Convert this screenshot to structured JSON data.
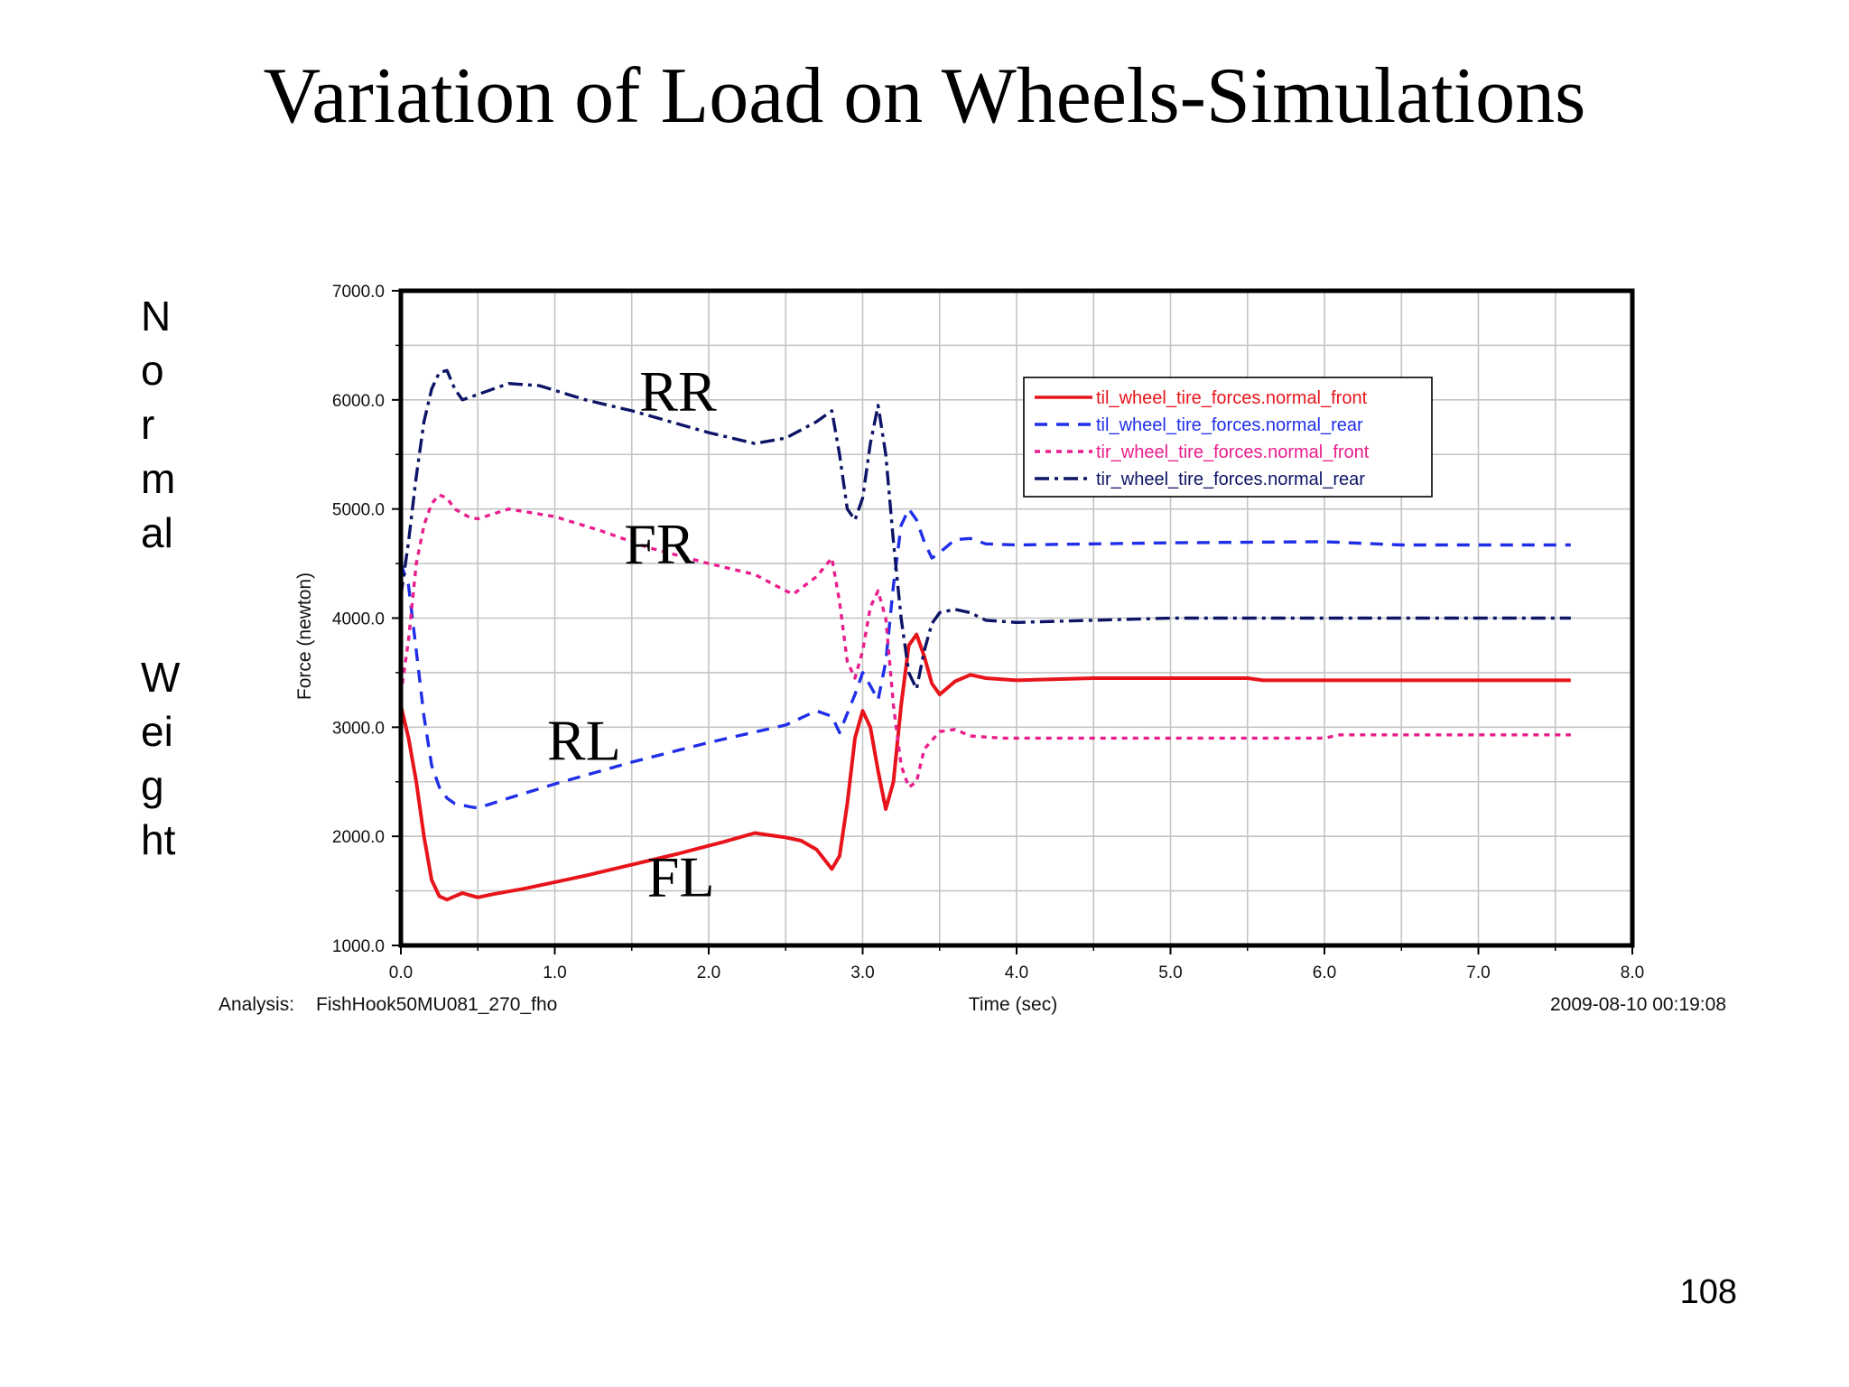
{
  "slide": {
    "title": "Variation of Load on Wheels-Simulations",
    "side_label_top": "N\no\nr\nm\nal",
    "side_label_bottom": "W\nei\ng\nht",
    "page_number": "108"
  },
  "chart_data": {
    "type": "line",
    "ylabel": "Force (newton)",
    "xlabel": "Time (sec)",
    "xlim": [
      0,
      8
    ],
    "ylim": [
      1000,
      7000
    ],
    "x_ticks": [
      "0.0",
      "1.0",
      "2.0",
      "3.0",
      "4.0",
      "5.0",
      "6.0",
      "7.0",
      "8.0"
    ],
    "y_ticks": [
      "1000.0",
      "2000.0",
      "3000.0",
      "4000.0",
      "5000.0",
      "6000.0",
      "7000.0"
    ],
    "grid": true,
    "legend_position": "top-right",
    "analysis_label": "Analysis:",
    "analysis_name": "FishHook50MU081_270_fho",
    "timestamp": "2009-08-10 00:19:08",
    "annotations": [
      {
        "text": "RR",
        "x": 1.55,
        "y": 5900
      },
      {
        "text": "FR",
        "x": 1.45,
        "y": 4500
      },
      {
        "text": "RL",
        "x": 0.95,
        "y": 2700
      },
      {
        "text": "FL",
        "x": 1.6,
        "y": 1450
      }
    ],
    "series": [
      {
        "name": "til_wheel_tire_forces.normal_front",
        "color": "#e8141b",
        "dash": "solid",
        "points": [
          [
            0,
            3200
          ],
          [
            0.05,
            2900
          ],
          [
            0.1,
            2500
          ],
          [
            0.15,
            2000
          ],
          [
            0.2,
            1600
          ],
          [
            0.25,
            1450
          ],
          [
            0.3,
            1420
          ],
          [
            0.35,
            1450
          ],
          [
            0.4,
            1480
          ],
          [
            0.45,
            1460
          ],
          [
            0.5,
            1440
          ],
          [
            0.6,
            1470
          ],
          [
            0.8,
            1520
          ],
          [
            1.0,
            1580
          ],
          [
            1.2,
            1640
          ],
          [
            1.5,
            1740
          ],
          [
            1.8,
            1840
          ],
          [
            2.1,
            1950
          ],
          [
            2.3,
            2030
          ],
          [
            2.4,
            2010
          ],
          [
            2.5,
            1990
          ],
          [
            2.6,
            1960
          ],
          [
            2.7,
            1880
          ],
          [
            2.8,
            1700
          ],
          [
            2.85,
            1820
          ],
          [
            2.9,
            2300
          ],
          [
            2.95,
            2900
          ],
          [
            3.0,
            3150
          ],
          [
            3.05,
            3000
          ],
          [
            3.1,
            2600
          ],
          [
            3.15,
            2250
          ],
          [
            3.2,
            2500
          ],
          [
            3.25,
            3200
          ],
          [
            3.3,
            3750
          ],
          [
            3.35,
            3850
          ],
          [
            3.4,
            3650
          ],
          [
            3.45,
            3400
          ],
          [
            3.5,
            3300
          ],
          [
            3.6,
            3420
          ],
          [
            3.7,
            3480
          ],
          [
            3.8,
            3450
          ],
          [
            4.0,
            3430
          ],
          [
            4.5,
            3450
          ],
          [
            5.5,
            3450
          ],
          [
            5.6,
            3430
          ],
          [
            6.5,
            3430
          ],
          [
            7.6,
            3430
          ]
        ]
      },
      {
        "name": "til_wheel_tire_forces.normal_rear",
        "color": "#1f2ee8",
        "dash": "14,10",
        "points": [
          [
            0,
            4500
          ],
          [
            0.05,
            4300
          ],
          [
            0.1,
            3700
          ],
          [
            0.15,
            3100
          ],
          [
            0.2,
            2650
          ],
          [
            0.25,
            2450
          ],
          [
            0.3,
            2350
          ],
          [
            0.35,
            2300
          ],
          [
            0.45,
            2270
          ],
          [
            0.5,
            2260
          ],
          [
            0.7,
            2350
          ],
          [
            1.0,
            2480
          ],
          [
            1.5,
            2680
          ],
          [
            2.0,
            2860
          ],
          [
            2.5,
            3020
          ],
          [
            2.7,
            3150
          ],
          [
            2.8,
            3100
          ],
          [
            2.85,
            2950
          ],
          [
            2.95,
            3300
          ],
          [
            3.0,
            3500
          ],
          [
            3.05,
            3380
          ],
          [
            3.1,
            3250
          ],
          [
            3.15,
            3600
          ],
          [
            3.2,
            4300
          ],
          [
            3.25,
            4850
          ],
          [
            3.3,
            5000
          ],
          [
            3.35,
            4900
          ],
          [
            3.4,
            4700
          ],
          [
            3.45,
            4550
          ],
          [
            3.5,
            4600
          ],
          [
            3.6,
            4720
          ],
          [
            3.7,
            4730
          ],
          [
            3.8,
            4680
          ],
          [
            4.0,
            4670
          ],
          [
            5.0,
            4690
          ],
          [
            6.0,
            4700
          ],
          [
            6.5,
            4670
          ],
          [
            7.6,
            4670
          ]
        ]
      },
      {
        "name": "tir_wheel_tire_forces.normal_front",
        "color": "#e91e8c",
        "dash": "6,6",
        "points": [
          [
            0,
            3300
          ],
          [
            0.05,
            3800
          ],
          [
            0.1,
            4500
          ],
          [
            0.15,
            4850
          ],
          [
            0.2,
            5050
          ],
          [
            0.25,
            5130
          ],
          [
            0.3,
            5100
          ],
          [
            0.35,
            5000
          ],
          [
            0.45,
            4920
          ],
          [
            0.5,
            4910
          ],
          [
            0.7,
            5000
          ],
          [
            1.0,
            4930
          ],
          [
            1.3,
            4800
          ],
          [
            1.6,
            4650
          ],
          [
            2.0,
            4500
          ],
          [
            2.3,
            4400
          ],
          [
            2.5,
            4250
          ],
          [
            2.55,
            4220
          ],
          [
            2.7,
            4380
          ],
          [
            2.8,
            4550
          ],
          [
            2.85,
            4150
          ],
          [
            2.9,
            3600
          ],
          [
            2.95,
            3450
          ],
          [
            3.0,
            3700
          ],
          [
            3.05,
            4100
          ],
          [
            3.1,
            4250
          ],
          [
            3.15,
            4000
          ],
          [
            3.2,
            3200
          ],
          [
            3.25,
            2650
          ],
          [
            3.3,
            2450
          ],
          [
            3.35,
            2500
          ],
          [
            3.4,
            2800
          ],
          [
            3.5,
            2960
          ],
          [
            3.6,
            2980
          ],
          [
            3.7,
            2920
          ],
          [
            3.9,
            2900
          ],
          [
            5.0,
            2900
          ],
          [
            6.0,
            2900
          ],
          [
            6.1,
            2930
          ],
          [
            7.6,
            2930
          ]
        ]
      },
      {
        "name": "tir_wheel_tire_forces.normal_rear",
        "color": "#0d1466",
        "dash": "16,6,4,6",
        "points": [
          [
            0,
            4200
          ],
          [
            0.05,
            4700
          ],
          [
            0.1,
            5300
          ],
          [
            0.15,
            5800
          ],
          [
            0.2,
            6100
          ],
          [
            0.25,
            6250
          ],
          [
            0.3,
            6270
          ],
          [
            0.35,
            6100
          ],
          [
            0.4,
            6000
          ],
          [
            0.5,
            6050
          ],
          [
            0.7,
            6150
          ],
          [
            0.9,
            6130
          ],
          [
            1.2,
            6000
          ],
          [
            1.5,
            5900
          ],
          [
            2.0,
            5700
          ],
          [
            2.3,
            5600
          ],
          [
            2.5,
            5650
          ],
          [
            2.7,
            5800
          ],
          [
            2.8,
            5900
          ],
          [
            2.85,
            5500
          ],
          [
            2.9,
            5000
          ],
          [
            2.95,
            4900
          ],
          [
            3.0,
            5100
          ],
          [
            3.05,
            5600
          ],
          [
            3.1,
            5950
          ],
          [
            3.15,
            5500
          ],
          [
            3.2,
            4700
          ],
          [
            3.25,
            4000
          ],
          [
            3.3,
            3500
          ],
          [
            3.35,
            3350
          ],
          [
            3.4,
            3700
          ],
          [
            3.45,
            3950
          ],
          [
            3.5,
            4050
          ],
          [
            3.6,
            4080
          ],
          [
            3.7,
            4050
          ],
          [
            3.8,
            3980
          ],
          [
            4.0,
            3960
          ],
          [
            4.5,
            3980
          ],
          [
            5.0,
            4000
          ],
          [
            6.0,
            4000
          ],
          [
            7.6,
            4000
          ]
        ]
      }
    ]
  }
}
